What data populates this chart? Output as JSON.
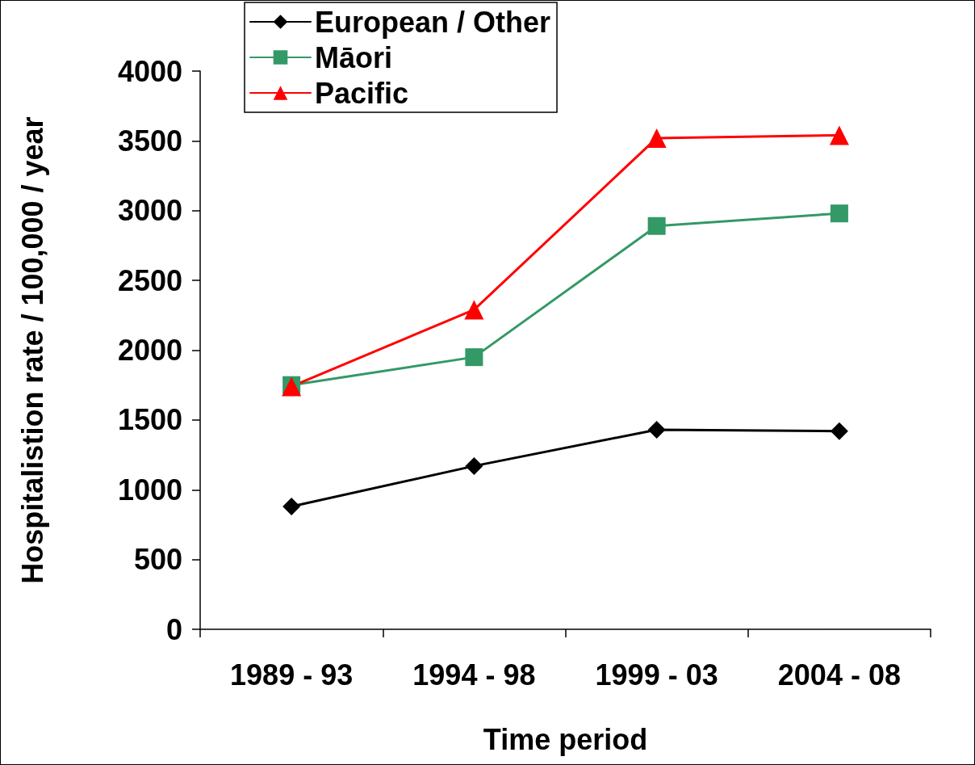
{
  "chart_data": {
    "type": "line",
    "xlabel": "Time period",
    "ylabel": "Hospitalistion rate / 100,000 / year",
    "categories": [
      "1989 - 93",
      "1994 - 98",
      "1999 - 03",
      "2004 - 08"
    ],
    "series": [
      {
        "name": "European / Other",
        "color": "#000000",
        "marker": "diamond",
        "values": [
          880,
          1170,
          1430,
          1420
        ]
      },
      {
        "name": "Māori",
        "color": "#339966",
        "marker": "square",
        "values": [
          1750,
          1950,
          2890,
          2980
        ]
      },
      {
        "name": "Pacific",
        "color": "#ff0000",
        "marker": "triangle",
        "values": [
          1740,
          2290,
          3520,
          3540
        ]
      }
    ],
    "ylim": [
      0,
      4000
    ],
    "yticks": [
      0,
      500,
      1000,
      1500,
      2000,
      2500,
      3000,
      3500,
      4000
    ],
    "grid": false,
    "legend": "top left",
    "line_style": "solid"
  }
}
